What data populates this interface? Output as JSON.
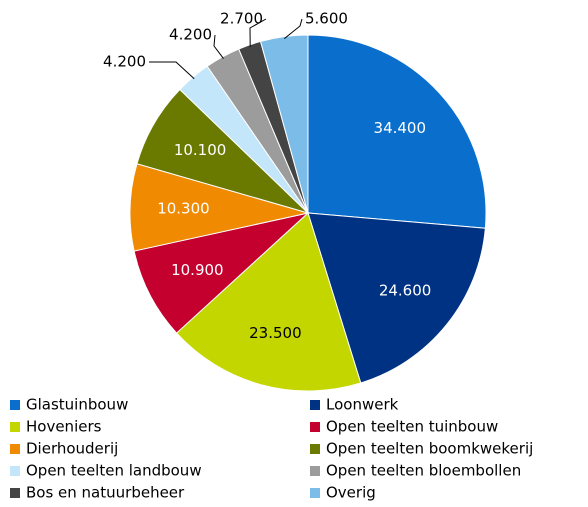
{
  "chart_data": {
    "type": "pie",
    "categories": [
      "Glastuinbouw",
      "Loonwerk",
      "Hoveniers",
      "Open teelten tuinbouw",
      "Dierhouderij",
      "Open teelten boomkwekerij",
      "Open teelten landbouw",
      "Open teelten bloembollen",
      "Bos en natuurbeheer",
      "Overig"
    ],
    "values": [
      34400,
      24600,
      23500,
      10900,
      10300,
      10100,
      4200,
      4200,
      2700,
      5600
    ],
    "value_labels": [
      "34.400",
      "24.600",
      "23.500",
      "10.900",
      "10.300",
      "10.100",
      "4.200",
      "4.200",
      "2.700",
      "5.600"
    ],
    "colors": [
      "#0a6fcc",
      "#003283",
      "#c4d600",
      "#c4002f",
      "#f08a00",
      "#6a7a00",
      "#c3e6fb",
      "#9c9c9c",
      "#444444",
      "#7cbce8"
    ],
    "legend": "bottom"
  }
}
